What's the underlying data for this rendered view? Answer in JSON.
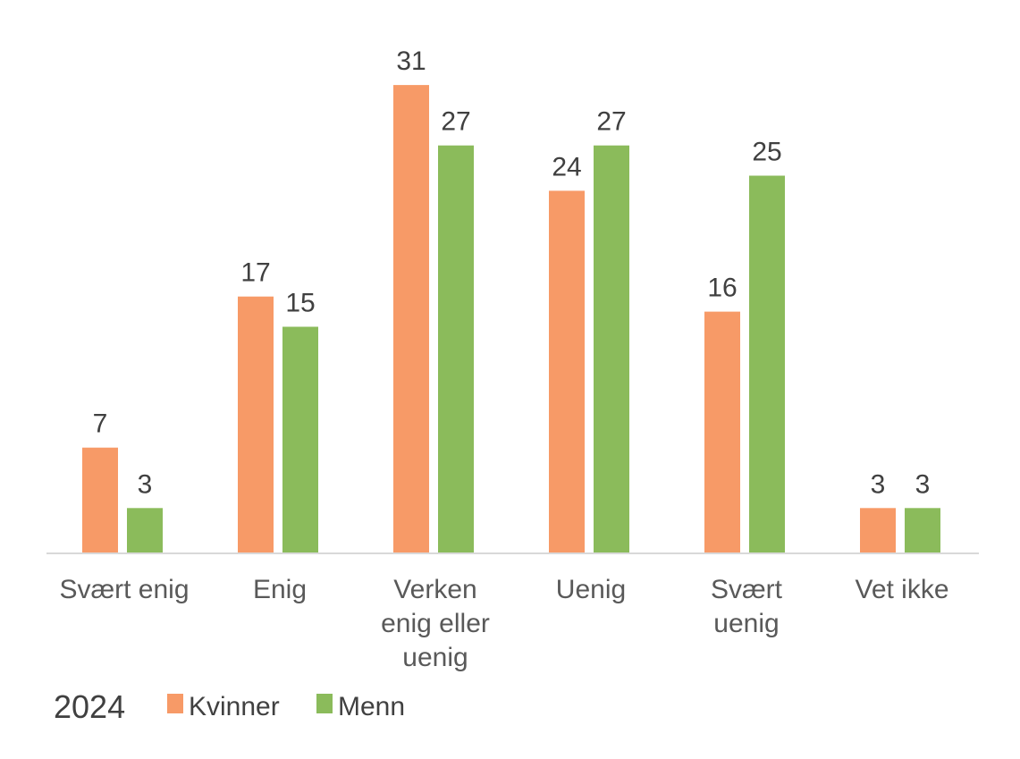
{
  "chart_data": {
    "type": "bar",
    "categories": [
      [
        "Svært enig"
      ],
      [
        "Enig"
      ],
      [
        "Verken",
        "enig eller",
        "uenig"
      ],
      [
        "Uenig"
      ],
      [
        "Svært",
        "uenig"
      ],
      [
        "Vet ikke"
      ]
    ],
    "series": [
      {
        "name": "Kvinner",
        "color": "#F79A67",
        "values": [
          7,
          17,
          31,
          24,
          16,
          3
        ]
      },
      {
        "name": "Menn",
        "color": "#8BBB5B",
        "values": [
          3,
          15,
          27,
          27,
          25,
          3
        ]
      }
    ],
    "legend_title": "2024",
    "legend_position": "bottom-left",
    "data_labels": true,
    "grid": false,
    "ylim": [
      0,
      31
    ]
  }
}
